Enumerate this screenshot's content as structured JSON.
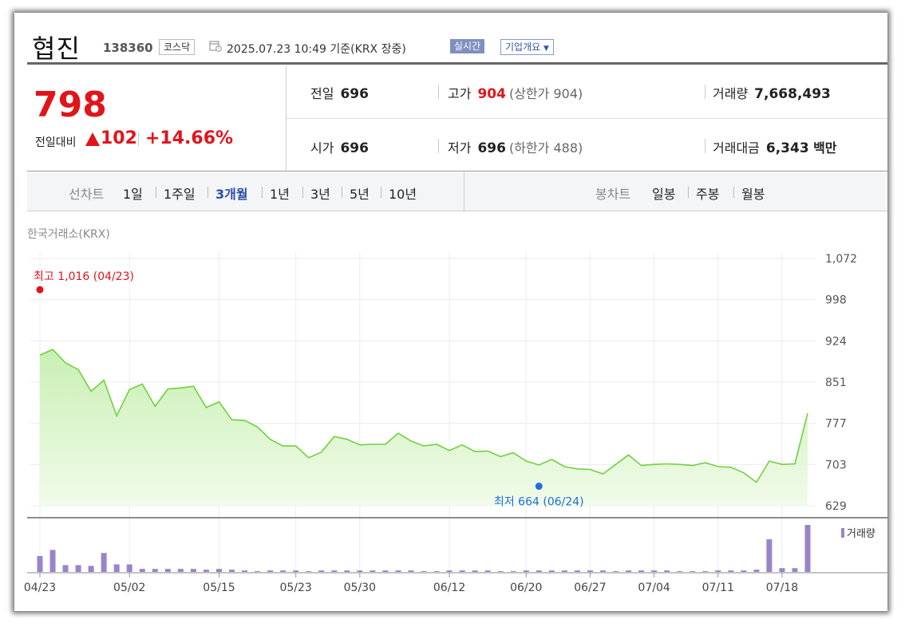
{
  "stock": {
    "name": "협진",
    "code": "138360",
    "market": "코스닥",
    "datetime": "2025.07.23 10:49",
    "basis": "기준(KRX 장중)",
    "live_label": "실시간",
    "corp_label": "기업개요",
    "price": "798",
    "diff_label": "전일대비",
    "diff": "102",
    "diff_pct": "+14.66%"
  },
  "stats": {
    "prev_label": "전일",
    "prev": "696",
    "open_label": "시가",
    "open": "696",
    "high_label": "고가",
    "high": "904",
    "upper_label": "상한가",
    "upper": "904",
    "low_label": "저가",
    "low": "696",
    "lower_label": "하한가",
    "lower": "488",
    "volume_label": "거래량",
    "volume": "7,668,493",
    "amount_label": "거래대금",
    "amount": "6,343",
    "amount_unit": "백만"
  },
  "period": {
    "line_label": "선차트",
    "line_items": [
      "1일",
      "1주일",
      "3개월",
      "1년",
      "3년",
      "5년",
      "10년"
    ],
    "selected": "3개월",
    "candle_label": "봉차트",
    "candle_items": [
      "일봉",
      "주봉",
      "월봉"
    ]
  },
  "chart_data": {
    "type": "area",
    "source": "한국거래소(KRX)",
    "y_ticks": [
      "1,072",
      "998",
      "924",
      "851",
      "777",
      "703",
      "629"
    ],
    "ylim": [
      629,
      1072
    ],
    "x_ticks": [
      "04/23",
      "05/02",
      "05/15",
      "05/23",
      "05/30",
      "06/12",
      "06/20",
      "06/27",
      "07/04",
      "07/11",
      "07/18"
    ],
    "x_tick_index": [
      0,
      7,
      14,
      20,
      25,
      32,
      38,
      43,
      48,
      53,
      58
    ],
    "max_label": "최고 1,016 (04/23)",
    "max_point": {
      "index": 0,
      "value": 1016
    },
    "min_label": "최저 664 (06/24)",
    "min_point": {
      "index": 39,
      "value": 664
    },
    "volume_label": "거래량",
    "series": [
      {
        "name": "종가",
        "values": [
          899,
          909,
          885,
          873,
          834,
          854,
          790,
          837,
          847,
          807,
          838,
          840,
          843,
          805,
          815,
          783,
          782,
          770,
          748,
          736,
          736,
          715,
          725,
          753,
          748,
          738,
          739,
          739,
          759,
          745,
          736,
          739,
          728,
          738,
          726,
          727,
          717,
          724,
          709,
          702,
          712,
          699,
          695,
          694,
          686,
          703,
          720,
          701,
          703,
          704,
          703,
          701,
          706,
          699,
          698,
          688,
          671,
          709,
          703,
          704,
          795
        ]
      },
      {
        "name": "거래량",
        "values": [
          2.1,
          2.9,
          0.9,
          0.9,
          0.8,
          2.5,
          1.0,
          1.0,
          0.4,
          0.4,
          0.4,
          0.4,
          0.4,
          0.3,
          0.4,
          0.3,
          0.2,
          0.1,
          0.2,
          0.2,
          0.2,
          0.1,
          0.2,
          0.2,
          0.2,
          0.2,
          0.2,
          0.2,
          0.2,
          0.2,
          0.1,
          0.1,
          0.2,
          0.2,
          0.2,
          0.2,
          0.1,
          0.1,
          0.2,
          0.2,
          0.2,
          0.2,
          0.2,
          0.2,
          0.2,
          0.1,
          0.2,
          0.2,
          0.2,
          0.2,
          0.1,
          0.1,
          0.1,
          0.2,
          0.2,
          0.2,
          0.3,
          4.3,
          0.5,
          0.5,
          6.2
        ]
      }
    ]
  }
}
